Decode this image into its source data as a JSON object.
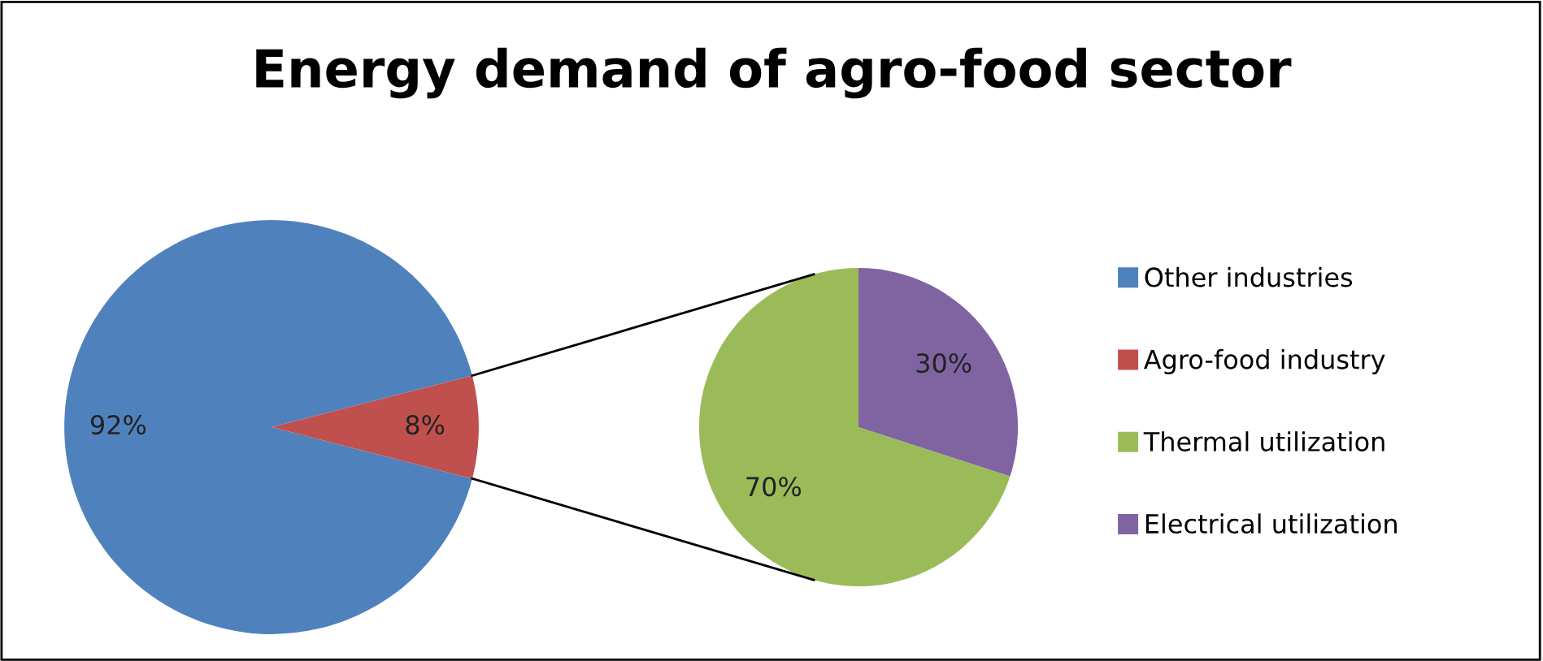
{
  "chart_data": [
    {
      "type": "pie",
      "title": "Energy demand of agro-food sector",
      "categories": [
        "Other industries",
        "Agro-food industry"
      ],
      "values": [
        92,
        8
      ],
      "colors": [
        "#4f81bd",
        "#c0504d"
      ],
      "value_labels": [
        "92%",
        "8%"
      ],
      "legend": "right"
    },
    {
      "type": "pie",
      "categories": [
        "Thermal utilization",
        "Electrical utilization"
      ],
      "values": [
        70,
        30
      ],
      "colors": [
        "#9bbb59",
        "#8064a2"
      ],
      "value_labels": [
        "70%",
        "30%"
      ],
      "legend": "right"
    }
  ]
}
